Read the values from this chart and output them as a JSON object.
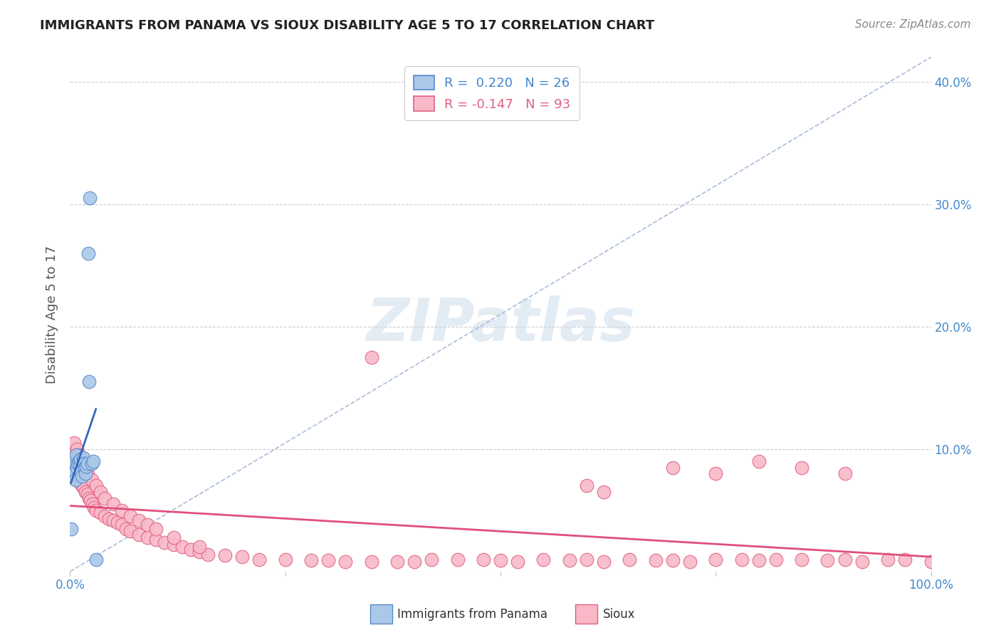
{
  "title": "IMMIGRANTS FROM PANAMA VS SIOUX DISABILITY AGE 5 TO 17 CORRELATION CHART",
  "source": "Source: ZipAtlas.com",
  "ylabel": "Disability Age 5 to 17",
  "xlim": [
    0.0,
    1.0
  ],
  "ylim": [
    0.0,
    0.42
  ],
  "r_panama": 0.22,
  "n_panama": 26,
  "r_sioux": -0.147,
  "n_sioux": 93,
  "legend_labels": [
    "Immigrants from Panama",
    "Sioux"
  ],
  "blue_fill": "#aac8e8",
  "blue_edge": "#5588cc",
  "pink_fill": "#f8b8c8",
  "pink_edge": "#e06080",
  "blue_line": "#3366bb",
  "pink_line": "#e0507a",
  "dashed_color": "#aabbdd",
  "background_color": "#ffffff",
  "grid_color": "#cccccc",
  "title_color": "#222222",
  "axis_label_color": "#555555",
  "tick_color": "#4488cc",
  "watermark": "ZIPatlas",
  "panama_x": [
    0.001,
    0.002,
    0.003,
    0.004,
    0.005,
    0.006,
    0.007,
    0.008,
    0.009,
    0.01,
    0.011,
    0.012,
    0.013,
    0.014,
    0.015,
    0.016,
    0.017,
    0.018,
    0.019,
    0.02,
    0.021,
    0.022,
    0.023,
    0.025,
    0.027,
    0.03
  ],
  "panama_y": [
    0.035,
    0.08,
    0.085,
    0.09,
    0.08,
    0.075,
    0.095,
    0.085,
    0.088,
    0.09,
    0.087,
    0.092,
    0.082,
    0.078,
    0.093,
    0.088,
    0.085,
    0.08,
    0.086,
    0.088,
    0.26,
    0.155,
    0.305,
    0.088,
    0.09,
    0.01
  ],
  "sioux_x": [
    0.003,
    0.005,
    0.007,
    0.009,
    0.01,
    0.012,
    0.014,
    0.016,
    0.018,
    0.02,
    0.022,
    0.024,
    0.026,
    0.028,
    0.03,
    0.035,
    0.04,
    0.045,
    0.05,
    0.055,
    0.06,
    0.065,
    0.07,
    0.08,
    0.09,
    0.1,
    0.11,
    0.12,
    0.13,
    0.14,
    0.15,
    0.16,
    0.18,
    0.2,
    0.22,
    0.25,
    0.28,
    0.3,
    0.32,
    0.35,
    0.38,
    0.4,
    0.42,
    0.45,
    0.48,
    0.5,
    0.52,
    0.55,
    0.58,
    0.6,
    0.62,
    0.65,
    0.68,
    0.7,
    0.72,
    0.75,
    0.78,
    0.8,
    0.82,
    0.85,
    0.88,
    0.9,
    0.92,
    0.95,
    0.97,
    1.0,
    0.005,
    0.008,
    0.01,
    0.012,
    0.015,
    0.018,
    0.02,
    0.025,
    0.03,
    0.035,
    0.04,
    0.05,
    0.06,
    0.07,
    0.08,
    0.09,
    0.1,
    0.12,
    0.15,
    0.35,
    0.6,
    0.62,
    0.7,
    0.75,
    0.8,
    0.85,
    0.9
  ],
  "sioux_y": [
    0.095,
    0.085,
    0.08,
    0.078,
    0.075,
    0.072,
    0.07,
    0.068,
    0.065,
    0.063,
    0.06,
    0.058,
    0.055,
    0.052,
    0.05,
    0.048,
    0.045,
    0.043,
    0.042,
    0.04,
    0.038,
    0.035,
    0.033,
    0.03,
    0.028,
    0.026,
    0.024,
    0.022,
    0.02,
    0.018,
    0.016,
    0.014,
    0.013,
    0.012,
    0.01,
    0.01,
    0.009,
    0.009,
    0.008,
    0.008,
    0.008,
    0.008,
    0.01,
    0.01,
    0.01,
    0.009,
    0.008,
    0.01,
    0.009,
    0.01,
    0.008,
    0.01,
    0.009,
    0.009,
    0.008,
    0.01,
    0.01,
    0.009,
    0.01,
    0.01,
    0.009,
    0.01,
    0.008,
    0.01,
    0.01,
    0.008,
    0.105,
    0.1,
    0.095,
    0.09,
    0.085,
    0.082,
    0.08,
    0.075,
    0.07,
    0.065,
    0.06,
    0.055,
    0.05,
    0.045,
    0.042,
    0.038,
    0.035,
    0.028,
    0.02,
    0.175,
    0.07,
    0.065,
    0.085,
    0.08,
    0.09,
    0.085,
    0.08
  ]
}
